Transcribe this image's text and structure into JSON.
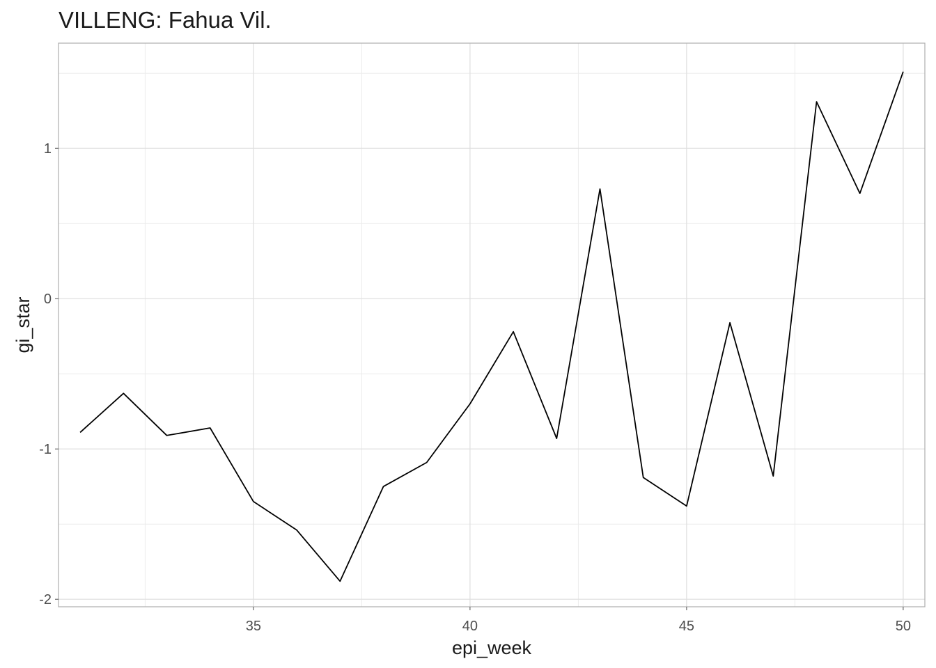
{
  "chart_data": {
    "type": "line",
    "title": "VILLENG: Fahua Vil.",
    "xlabel": "epi_week",
    "ylabel": "gi_star",
    "xlim": [
      30.5,
      50.5
    ],
    "ylim": [
      -2.05,
      1.7
    ],
    "x_ticks": [
      35,
      40,
      45,
      50
    ],
    "x_tick_labels": [
      "35",
      "40",
      "45",
      "50"
    ],
    "x_minor_ticks": [
      32.5,
      37.5,
      42.5,
      47.5
    ],
    "y_ticks": [
      -2,
      -1,
      0,
      1
    ],
    "y_tick_labels": [
      "-2",
      "-1",
      "0",
      "1"
    ],
    "y_minor_ticks": [
      -1.5,
      -0.5,
      0.5,
      1.5
    ],
    "grid": true,
    "series": [
      {
        "line_color": "#000000",
        "x": [
          31,
          32,
          33,
          34,
          35,
          36,
          37,
          38,
          39,
          40,
          41,
          42,
          43,
          44,
          45,
          46,
          47,
          48,
          49,
          50
        ],
        "y": [
          -0.89,
          -0.63,
          -0.91,
          -0.86,
          -1.35,
          -1.54,
          -1.88,
          -1.25,
          -1.09,
          -0.7,
          -0.22,
          -0.93,
          0.73,
          -1.19,
          -1.38,
          -0.16,
          -1.18,
          1.31,
          0.7,
          1.51
        ]
      }
    ],
    "colors": {
      "panel_border": "#b3b3b3",
      "grid_major": "#dedede",
      "grid_minor": "#ebebeb"
    }
  }
}
